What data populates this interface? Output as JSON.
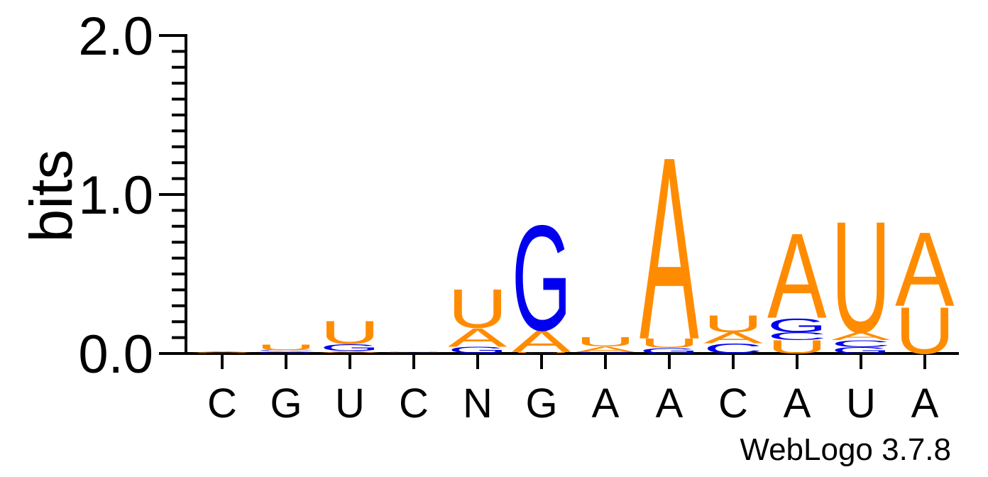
{
  "chart_data": {
    "type": "sequence-logo",
    "ylabel": "bits",
    "ylim": [
      0,
      2.0
    ],
    "yticks": [
      "0.0",
      "1.0",
      "2.0"
    ],
    "xtick_labels": [
      "C",
      "G",
      "U",
      "C",
      "N",
      "G",
      "A",
      "A",
      "C",
      "A",
      "U",
      "A"
    ],
    "credit": "WebLogo 3.7.8",
    "colors": {
      "A": "#ff8c00",
      "U": "#ff8c00",
      "G": "#0000ee",
      "C": "#0000ee"
    },
    "positions": [
      [
        [
          "G",
          0.003
        ],
        [
          "U",
          0.004
        ],
        [
          "A",
          0.006
        ]
      ],
      [
        [
          "C",
          0.004
        ],
        [
          "G",
          0.005
        ],
        [
          "A",
          0.008
        ],
        [
          "C",
          0.006
        ],
        [
          "U",
          0.035
        ]
      ],
      [
        [
          "C",
          0.004
        ],
        [
          "A",
          0.012
        ],
        [
          "G",
          0.045
        ],
        [
          "U",
          0.15
        ]
      ],
      [
        [
          "C",
          0.003
        ],
        [
          "G",
          0.003
        ],
        [
          "A",
          0.004
        ],
        [
          "U",
          0.003
        ]
      ],
      [
        [
          "C",
          0.003
        ],
        [
          "G",
          0.04
        ],
        [
          "A",
          0.12
        ],
        [
          "U",
          0.25
        ]
      ],
      [
        [
          "C",
          0.003
        ],
        [
          "U",
          0.006
        ],
        [
          "A",
          0.14
        ],
        [
          "G",
          0.68
        ]
      ],
      [
        [
          "C",
          0.004
        ],
        [
          "G",
          0.006
        ],
        [
          "A",
          0.035
        ],
        [
          "U",
          0.06
        ]
      ],
      [
        [
          "G",
          0.035
        ],
        [
          "U",
          0.06
        ],
        [
          "A",
          1.18
        ]
      ],
      [
        [
          "C",
          0.065
        ],
        [
          "A",
          0.07
        ],
        [
          "U",
          0.11
        ]
      ],
      [
        [
          "U",
          0.085
        ],
        [
          "C",
          0.05
        ],
        [
          "G",
          0.09
        ],
        [
          "A",
          0.55
        ]
      ],
      [
        [
          "G",
          0.04
        ],
        [
          "C",
          0.045
        ],
        [
          "A",
          0.05
        ],
        [
          "U",
          0.72
        ]
      ],
      [
        [
          "U",
          0.3
        ],
        [
          "A",
          0.48
        ]
      ]
    ]
  }
}
